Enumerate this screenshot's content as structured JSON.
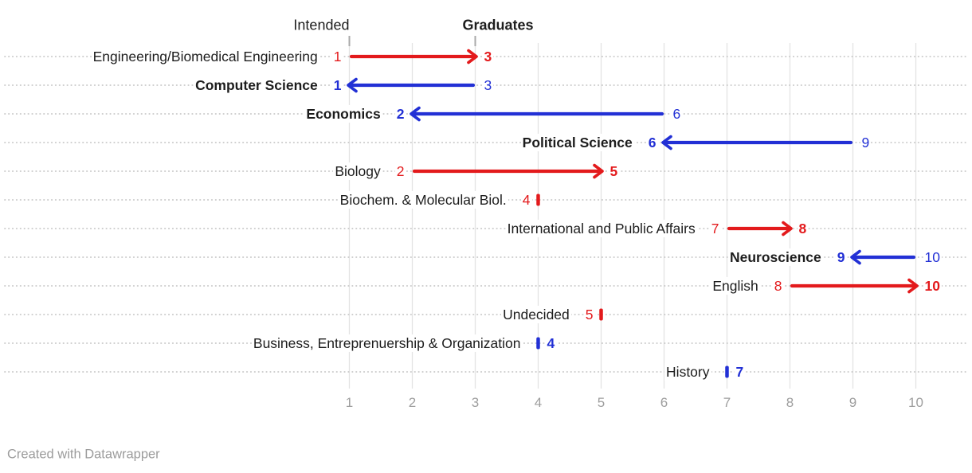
{
  "header": {
    "intended_label": "Intended",
    "graduates_label": "Graduates"
  },
  "footer": {
    "credit": "Created with Datawrapper"
  },
  "palette": {
    "red": "#e31a1c",
    "blue": "#2230d5",
    "label_color": "#1d1d1d",
    "axis_color": "#9e9e9e",
    "grid_color": "#e3e3e3",
    "dot_color": "#c7c7c7",
    "header_tick_color": "#a9a9a9"
  },
  "chart_data": {
    "type": "arrow",
    "title": "",
    "xlabel": "",
    "ylabel": "",
    "x_axis": {
      "min": 1,
      "max": 10,
      "ticks": [
        1,
        2,
        3,
        4,
        5,
        6,
        7,
        8,
        9,
        10
      ]
    },
    "columns": {
      "start": "Intended",
      "end": "Graduates"
    },
    "legend_position": "top",
    "grid": true,
    "rows": [
      {
        "label": "Engineering/Biomedical Engineering",
        "intended": 1,
        "graduates": 3,
        "color": "red",
        "label_bold": false
      },
      {
        "label": "Computer Science",
        "intended": 3,
        "graduates": 1,
        "color": "blue",
        "label_bold": true
      },
      {
        "label": "Economics",
        "intended": 6,
        "graduates": 2,
        "color": "blue",
        "label_bold": true
      },
      {
        "label": "Political Science",
        "intended": 9,
        "graduates": 6,
        "color": "blue",
        "label_bold": true
      },
      {
        "label": "Biology",
        "intended": 2,
        "graduates": 5,
        "color": "red",
        "label_bold": false
      },
      {
        "label": "Biochem. & Molecular Biol.",
        "intended": 4,
        "graduates": 4,
        "color": "red",
        "label_bold": false
      },
      {
        "label": "International and Public Affairs",
        "intended": 7,
        "graduates": 8,
        "color": "red",
        "label_bold": false
      },
      {
        "label": "Neuroscience",
        "intended": 10,
        "graduates": 9,
        "color": "blue",
        "label_bold": true
      },
      {
        "label": "English",
        "intended": 8,
        "graduates": 10,
        "color": "red",
        "label_bold": false
      },
      {
        "label": "Undecided",
        "intended": 5,
        "graduates": 5,
        "color": "red",
        "label_bold": false
      },
      {
        "label": "Business, Entreprenuership & Organization",
        "intended": 4,
        "graduates": 4,
        "color": "blue",
        "label_bold": false
      },
      {
        "label": "History",
        "intended": 7,
        "graduates": 7,
        "color": "blue",
        "label_bold": false
      }
    ]
  }
}
